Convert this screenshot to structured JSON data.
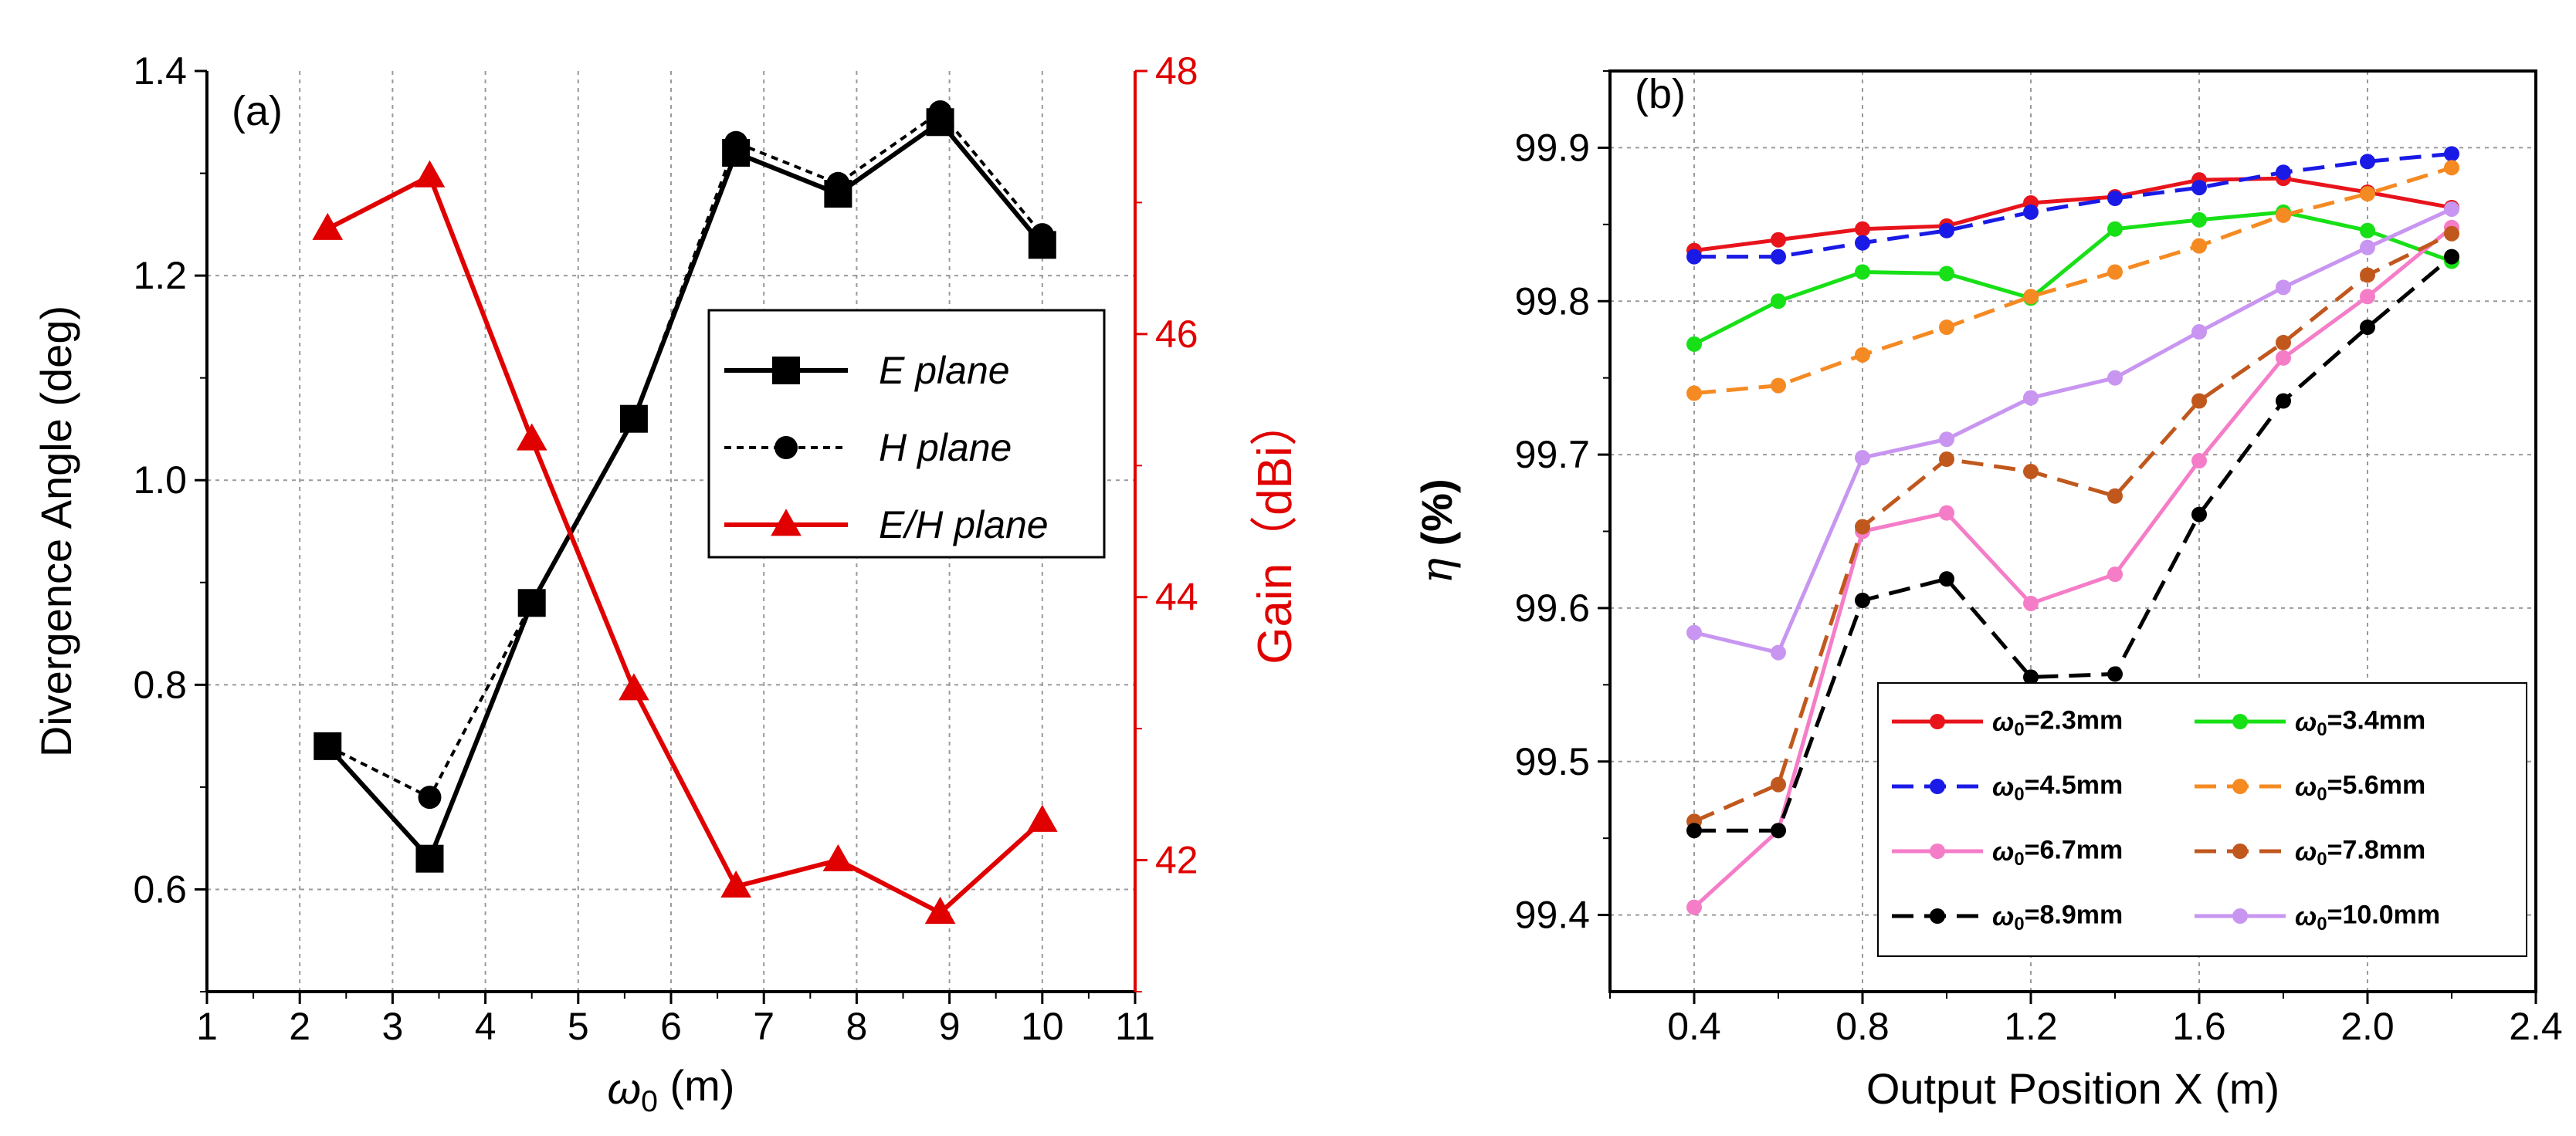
{
  "colors": {
    "black": "#000000",
    "red": "#e00000",
    "s_2_3": "#e8141c",
    "s_3_4": "#17e017",
    "s_4_5": "#1a1ae6",
    "s_5_6": "#f58a22",
    "s_6_7": "#f57dc8",
    "s_7_8": "#c0581e",
    "s_8_9": "#000000",
    "s_10_0": "#c896f0"
  },
  "chart_data": [
    {
      "type": "line",
      "panel_label": "(a)",
      "xlabel": "ω0 (m)",
      "ylabel": "Divergence Angle (deg)",
      "y2label": "Gain（dBi）",
      "xlim": [
        1,
        11
      ],
      "ylim": [
        0.5,
        1.4
      ],
      "y2lim": [
        41,
        48
      ],
      "x_ticks": [
        "1",
        "2",
        "3",
        "4",
        "5",
        "6",
        "7",
        "8",
        "9",
        "10",
        "11"
      ],
      "y_ticks": [
        "0.6",
        "0.8",
        "1.0",
        "1.2",
        "1.4"
      ],
      "y2_ticks": [
        "42",
        "44",
        "46",
        "48"
      ],
      "x": [
        2.3,
        3.4,
        4.5,
        5.6,
        6.7,
        7.8,
        8.9,
        10.0
      ],
      "series": [
        {
          "name": "E plane",
          "axis": "left",
          "marker": "square",
          "style": "solid",
          "values": [
            0.74,
            0.63,
            0.88,
            1.06,
            1.32,
            1.28,
            1.35,
            1.23
          ]
        },
        {
          "name": "H plane",
          "axis": "left",
          "marker": "circle",
          "style": "dotted",
          "values": [
            0.74,
            0.69,
            0.88,
            1.06,
            1.33,
            1.29,
            1.36,
            1.24
          ]
        },
        {
          "name": "E/H plane",
          "axis": "right",
          "marker": "triangle",
          "style": "solid",
          "values": [
            46.8,
            47.2,
            45.2,
            43.3,
            41.8,
            42.0,
            41.6,
            42.3
          ]
        }
      ],
      "legend": [
        "E plane",
        "H plane",
        "E/H plane"
      ],
      "legend_position": "center-right"
    },
    {
      "type": "line",
      "panel_label": "(b)",
      "xlabel": "Output Position X (m)",
      "ylabel": "η (%)",
      "xlim": [
        0.2,
        2.4
      ],
      "ylim": [
        99.35,
        99.95
      ],
      "x_ticks": [
        "0.4",
        "0.8",
        "1.2",
        "1.6",
        "2.0",
        "2.4"
      ],
      "y_ticks": [
        "99.4",
        "99.5",
        "99.6",
        "99.7",
        "99.8",
        "99.9"
      ],
      "x": [
        0.4,
        0.6,
        0.8,
        1.0,
        1.2,
        1.4,
        1.6,
        1.8,
        2.0,
        2.2
      ],
      "series": [
        {
          "name": "ω0=2.3mm",
          "style": "solid",
          "values": [
            99.833,
            99.84,
            99.847,
            99.849,
            99.864,
            99.868,
            99.879,
            99.88,
            99.871,
            99.861
          ]
        },
        {
          "name": "ω0=3.4mm",
          "style": "solid",
          "values": [
            99.772,
            99.8,
            99.819,
            99.818,
            99.802,
            99.847,
            99.853,
            99.858,
            99.846,
            99.826
          ]
        },
        {
          "name": "ω0=4.5mm",
          "style": "dashed",
          "values": [
            99.829,
            99.829,
            99.838,
            99.846,
            99.858,
            99.867,
            99.874,
            99.884,
            99.891,
            99.896
          ]
        },
        {
          "name": "ω0=5.6mm",
          "style": "dashed",
          "values": [
            99.74,
            99.745,
            99.765,
            99.783,
            99.803,
            99.819,
            99.836,
            99.856,
            99.87,
            99.887
          ]
        },
        {
          "name": "ω0=6.7mm",
          "style": "solid",
          "values": [
            99.405,
            99.455,
            99.65,
            99.662,
            99.603,
            99.622,
            99.696,
            99.763,
            99.803,
            99.848
          ]
        },
        {
          "name": "ω0=7.8mm",
          "style": "dashed",
          "values": [
            99.461,
            99.485,
            99.653,
            99.697,
            99.689,
            99.673,
            99.735,
            99.773,
            99.817,
            99.844
          ]
        },
        {
          "name": "ω0=8.9mm",
          "style": "dashed",
          "values": [
            99.455,
            99.455,
            99.605,
            99.619,
            99.555,
            99.557,
            99.661,
            99.735,
            99.783,
            99.829
          ]
        },
        {
          "name": "ω0=10.0mm",
          "style": "solid",
          "values": [
            99.584,
            99.571,
            99.698,
            99.71,
            99.737,
            99.75,
            99.78,
            99.809,
            99.835,
            99.86
          ]
        }
      ],
      "legend": [
        "ω0=2.3mm",
        "ω0=3.4mm",
        "ω0=4.5mm",
        "ω0=5.6mm",
        "ω0=6.7mm",
        "ω0=7.8mm",
        "ω0=8.9mm",
        "ω0=10.0mm"
      ],
      "legend_position": "bottom-right"
    }
  ]
}
